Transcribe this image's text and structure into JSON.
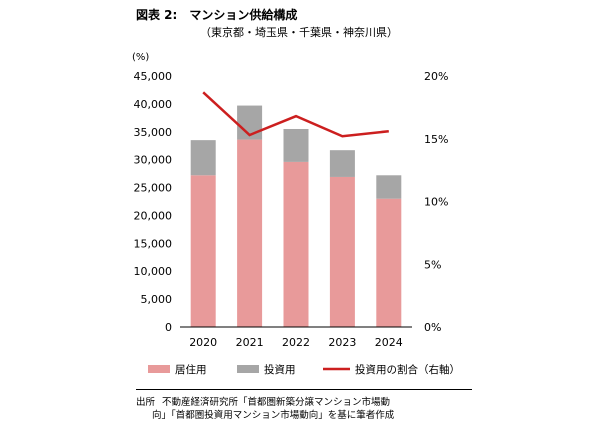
{
  "figure": {
    "title": "図表 2:　マンション供給構成",
    "subtitle": "（東京都・埼玉県・千葉県・神奈川県）",
    "source_label": "出所",
    "source_text_1": "不動産経済研究所「首都圏新築分譲マンション市場動",
    "source_text_2": "向」「首都圏投資用マンション市場動向」を基に筆者作成"
  },
  "chart_data": {
    "type": "bar",
    "stacked": true,
    "categories": [
      "2020",
      "2021",
      "2022",
      "2023",
      "2024"
    ],
    "series": [
      {
        "name": "居住用",
        "type": "bar",
        "axis": "left",
        "color": "#e89a9a",
        "values": [
          27200,
          33600,
          29600,
          26900,
          23000
        ]
      },
      {
        "name": "投資用",
        "type": "bar",
        "axis": "left",
        "color": "#a6a6a6",
        "values": [
          6300,
          6100,
          5900,
          4800,
          4200
        ]
      },
      {
        "name": "投資用の割合（右軸）",
        "type": "line",
        "axis": "right",
        "color": "#cc1f1f",
        "values": [
          18.7,
          15.3,
          16.8,
          15.2,
          15.6
        ]
      }
    ],
    "yunit": "(%)",
    "ylim": [
      0,
      45000
    ],
    "ytick_step": 5000,
    "yticks": [
      "0",
      "5,000",
      "10,000",
      "15,000",
      "20,000",
      "25,000",
      "30,000",
      "35,000",
      "40,000",
      "45,000"
    ],
    "y2lim": [
      0,
      20
    ],
    "y2tick_step": 5,
    "y2ticks": [
      "0%",
      "5%",
      "10%",
      "15%",
      "20%"
    ],
    "legend_position": "bottom",
    "grid": false
  }
}
